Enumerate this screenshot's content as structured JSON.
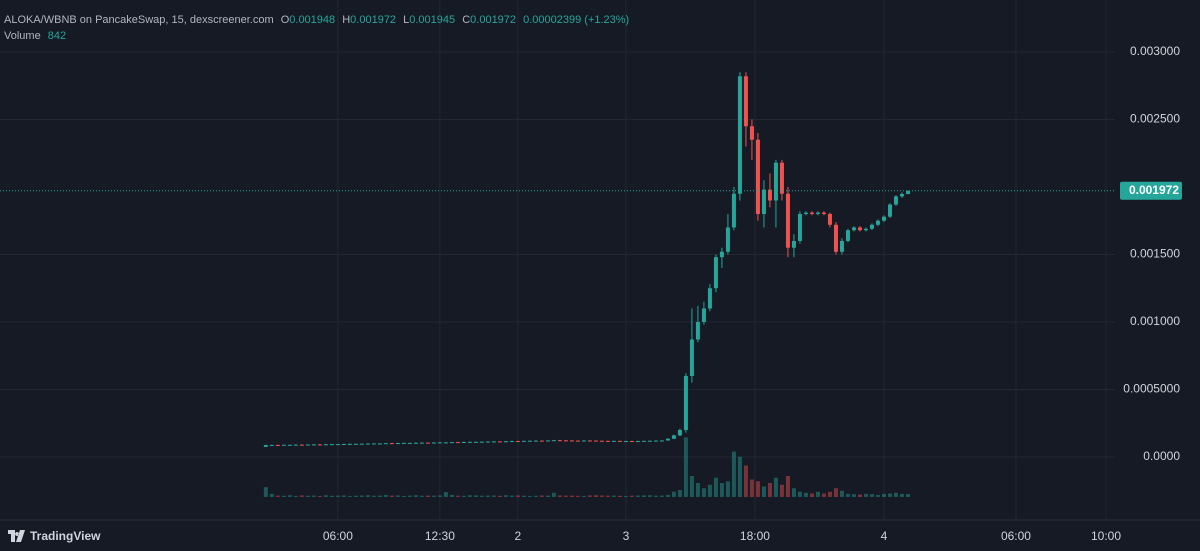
{
  "chart_data": {
    "type": "candlestick",
    "title": "ALOKA/WBNB on PancakeSwap, 15, dexscreener.com",
    "ohlc_labels": [
      "O",
      "H",
      "L",
      "C"
    ],
    "change": "0.00002399 (+1.23%)",
    "volume_title": "Volume",
    "brand": "TradingView",
    "up_color": "#26a69a",
    "down_color": "#ef5350",
    "grid": true,
    "ylim": [
      -0.000467,
      0.003385
    ],
    "yticks": [
      {
        "value": 0,
        "label": "0.0000"
      },
      {
        "value": 0.0005,
        "label": "0.0005000"
      },
      {
        "value": 0.001,
        "label": "0.001000"
      },
      {
        "value": 0.0015,
        "label": "0.001500"
      },
      {
        "value": 0.0025,
        "label": "0.002500"
      },
      {
        "value": 0.003,
        "label": "0.003000"
      }
    ],
    "xlim": [
      -44.3,
      141.5
    ],
    "xticks": [
      {
        "value": 12,
        "label": "06:00"
      },
      {
        "value": 29,
        "label": "12:30"
      },
      {
        "value": 42,
        "label": "2"
      },
      {
        "value": 60,
        "label": "3"
      },
      {
        "value": 81.5,
        "label": "18:00"
      },
      {
        "value": 103,
        "label": "4"
      },
      {
        "value": 125,
        "label": "06:00"
      },
      {
        "value": 140,
        "label": "10:00"
      }
    ],
    "volume_lim": [
      0,
      20000
    ],
    "candles": [
      [
        7.5e-05,
        9e-05,
        7.3e-05,
        8.8e-05
      ],
      [
        8.8e-05,
        9.1e-05,
        8.6e-05,
        8.9e-05
      ],
      [
        8.9e-05,
        9.1e-05,
        8.6e-05,
        8.8e-05
      ],
      [
        8.8e-05,
        9.2e-05,
        8.6e-05,
        9e-05
      ],
      [
        9e-05,
        9.2e-05,
        8.8e-05,
        9e-05
      ],
      [
        9e-05,
        9.3e-05,
        8.8e-05,
        9.1e-05
      ],
      [
        9.1e-05,
        9.3e-05,
        8.8e-05,
        9e-05
      ],
      [
        9e-05,
        9.4e-05,
        8.8e-05,
        9.2e-05
      ],
      [
        9.2e-05,
        9.5e-05,
        9e-05,
        9.3e-05
      ],
      [
        9.3e-05,
        9.5e-05,
        9e-05,
        9.2e-05
      ],
      [
        9.2e-05,
        9.6e-05,
        9e-05,
        9.4e-05
      ],
      [
        9.4e-05,
        9.7e-05,
        9.2e-05,
        9.5e-05
      ],
      [
        9.5e-05,
        9.7e-05,
        9.3e-05,
        9.5e-05
      ],
      [
        9.5e-05,
        9.8e-05,
        9.3e-05,
        9.6e-05
      ],
      [
        9.6e-05,
        9.9e-05,
        9.4e-05,
        9.7e-05
      ],
      [
        9.7e-05,
        9.9e-05,
        9.5e-05,
        9.7e-05
      ],
      [
        9.7e-05,
        0.0001,
        9.5e-05,
        9.8e-05
      ],
      [
        9.8e-05,
        0.000101,
        9.6e-05,
        9.9e-05
      ],
      [
        9.9e-05,
        0.000102,
        9.7e-05,
        0.0001
      ],
      [
        0.0001,
        0.000102,
        9.8e-05,
        0.0001
      ],
      [
        0.0001,
        0.000104,
        9.8e-05,
        0.000102
      ],
      [
        0.000102,
        0.000104,
        9.9e-05,
        0.000101
      ],
      [
        0.000101,
        0.000105,
        9.9e-05,
        0.000103
      ],
      [
        0.000103,
        0.000106,
        0.000101,
        0.000104
      ],
      [
        0.000104,
        0.000106,
        0.000102,
        0.000104
      ],
      [
        0.000104,
        0.000107,
        0.000102,
        0.000105
      ],
      [
        0.000105,
        0.000108,
        0.000103,
        0.000106
      ],
      [
        0.000106,
        0.000108,
        0.000103,
        0.000105
      ],
      [
        0.000105,
        0.000109,
        0.000103,
        0.000107
      ],
      [
        0.000107,
        0.00011,
        0.000105,
        0.000108
      ],
      [
        0.000108,
        0.00011,
        0.000106,
        0.000108
      ],
      [
        0.000108,
        0.000112,
        0.000106,
        0.00011
      ],
      [
        0.00011,
        0.000112,
        0.000107,
        0.000109
      ],
      [
        0.000109,
        0.000113,
        0.000107,
        0.000111
      ],
      [
        0.000111,
        0.000114,
        0.000109,
        0.000112
      ],
      [
        0.000112,
        0.000114,
        0.00011,
        0.000112
      ],
      [
        0.000112,
        0.000115,
        0.00011,
        0.000113
      ],
      [
        0.000113,
        0.000116,
        0.000111,
        0.000114
      ],
      [
        0.000114,
        0.000117,
        0.000112,
        0.000115
      ],
      [
        0.000115,
        0.000117,
        0.000112,
        0.000114
      ],
      [
        0.000114,
        0.000118,
        0.000112,
        0.000116
      ],
      [
        0.000116,
        0.00012,
        0.000114,
        0.000118
      ],
      [
        0.000118,
        0.00012,
        0.000115,
        0.000117
      ],
      [
        0.000117,
        0.000121,
        0.000115,
        0.000119
      ],
      [
        0.000119,
        0.000122,
        0.000117,
        0.00012
      ],
      [
        0.00012,
        0.000123,
        0.000118,
        0.000121
      ],
      [
        0.000121,
        0.000123,
        0.000118,
        0.00012
      ],
      [
        0.00012,
        0.000124,
        0.000118,
        0.000122
      ],
      [
        0.000122,
        0.000126,
        0.00012,
        0.000124
      ],
      [
        0.000124,
        0.000126,
        0.000121,
        0.000123
      ],
      [
        0.000123,
        0.000125,
        0.00012,
        0.000122
      ],
      [
        0.000122,
        0.000124,
        0.000119,
        0.000121
      ],
      [
        0.000121,
        0.000123,
        0.000118,
        0.00012
      ],
      [
        0.00012,
        0.000124,
        0.000118,
        0.000122
      ],
      [
        0.000122,
        0.000124,
        0.000119,
        0.000121
      ],
      [
        0.000121,
        0.000123,
        0.000118,
        0.00012
      ],
      [
        0.00012,
        0.000122,
        0.000117,
        0.000119
      ],
      [
        0.000119,
        0.000121,
        0.000116,
        0.000118
      ],
      [
        0.000118,
        0.000121,
        0.000116,
        0.000119
      ],
      [
        0.000119,
        0.000121,
        0.000115,
        0.000117
      ],
      [
        0.000117,
        0.00012,
        0.000115,
        0.000118
      ],
      [
        0.000118,
        0.00012,
        0.000115,
        0.000117
      ],
      [
        0.000117,
        0.00012,
        0.000115,
        0.000118
      ],
      [
        0.000118,
        0.000121,
        0.000116,
        0.000119
      ],
      [
        0.000119,
        0.000122,
        0.000117,
        0.00012
      ],
      [
        0.00012,
        0.000123,
        0.000118,
        0.000121
      ],
      [
        0.000121,
        0.000124,
        0.000119,
        0.000122
      ],
      [
        0.000122,
        0.000138,
        0.00012,
        0.000135
      ],
      [
        0.000135,
        0.000165,
        0.000132,
        0.00016
      ],
      [
        0.00016,
        0.00021,
        0.000155,
        0.0002
      ],
      [
        0.0002,
        0.00062,
        0.00018,
        0.0006
      ],
      [
        0.0006,
        0.0011,
        0.00055,
        0.00087
      ],
      [
        0.00087,
        0.00112,
        0.00085,
        0.001
      ],
      [
        0.001,
        0.00115,
        0.00098,
        0.0011
      ],
      [
        0.0011,
        0.00128,
        0.00108,
        0.00125
      ],
      [
        0.00125,
        0.0015,
        0.00122,
        0.00148
      ],
      [
        0.00148,
        0.00155,
        0.0014,
        0.00152
      ],
      [
        0.00152,
        0.0018,
        0.0015,
        0.0017
      ],
      [
        0.0017,
        0.002,
        0.00168,
        0.00195
      ],
      [
        0.00195,
        0.00285,
        0.0019,
        0.00282
      ],
      [
        0.00282,
        0.00285,
        0.0023,
        0.00245
      ],
      [
        0.00245,
        0.0025,
        0.0022,
        0.00235
      ],
      [
        0.00235,
        0.0024,
        0.00175,
        0.0018
      ],
      [
        0.0018,
        0.00205,
        0.0017,
        0.00198
      ],
      [
        0.00198,
        0.0021,
        0.00185,
        0.0019
      ],
      [
        0.0019,
        0.0022,
        0.0017,
        0.00218
      ],
      [
        0.00218,
        0.0022,
        0.0019,
        0.00195
      ],
      [
        0.00195,
        0.002,
        0.00148,
        0.00155
      ],
      [
        0.00155,
        0.00165,
        0.00148,
        0.0016
      ],
      [
        0.0016,
        0.00182,
        0.00158,
        0.0018
      ],
      [
        0.0018,
        0.00182,
        0.00179,
        0.00181
      ],
      [
        0.00181,
        0.00182,
        0.00179,
        0.0018
      ],
      [
        0.0018,
        0.00182,
        0.00179,
        0.00181
      ],
      [
        0.00181,
        0.00182,
        0.00179,
        0.0018
      ],
      [
        0.0018,
        0.00181,
        0.0017,
        0.00172
      ],
      [
        0.00172,
        0.00174,
        0.0015,
        0.00152
      ],
      [
        0.00152,
        0.00162,
        0.0015,
        0.0016
      ],
      [
        0.0016,
        0.00169,
        0.00159,
        0.00168
      ],
      [
        0.00168,
        0.00171,
        0.00167,
        0.0017
      ],
      [
        0.0017,
        0.00171,
        0.00167,
        0.00168
      ],
      [
        0.00168,
        0.0017,
        0.00167,
        0.00169
      ],
      [
        0.00169,
        0.00173,
        0.00168,
        0.00172
      ],
      [
        0.00172,
        0.00176,
        0.00171,
        0.00175
      ],
      [
        0.00175,
        0.00179,
        0.00174,
        0.00178
      ],
      [
        0.00178,
        0.00188,
        0.00177,
        0.00187
      ],
      [
        0.00187,
        0.00194,
        0.00186,
        0.00193
      ],
      [
        0.00193,
        0.00196,
        0.00192,
        0.001948
      ],
      [
        0.001948,
        0.001972,
        0.001945,
        0.001972
      ]
    ],
    "volume": [
      2800,
      900,
      400,
      350,
      500,
      300,
      450,
      380,
      420,
      300,
      500,
      350,
      400,
      450,
      300,
      380,
      420,
      500,
      350,
      400,
      600,
      380,
      450,
      300,
      400,
      500,
      350,
      420,
      380,
      450,
      1400,
      600,
      400,
      350,
      500,
      450,
      380,
      400,
      420,
      350,
      500,
      400,
      450,
      380,
      300,
      350,
      420,
      400,
      1200,
      450,
      380,
      400,
      350,
      300,
      450,
      500,
      420,
      380,
      400,
      350,
      300,
      380,
      420,
      450,
      500,
      380,
      400,
      600,
      1500,
      2000,
      17000,
      6000,
      4000,
      2500,
      3500,
      5500,
      4000,
      4500,
      13000,
      11500,
      9000,
      5000,
      4500,
      3000,
      4000,
      5500,
      3500,
      6000,
      2500,
      1500,
      1200,
      1000,
      1500,
      1000,
      1500,
      2500,
      1800,
      900,
      800,
      700,
      900,
      800,
      600,
      900,
      1000,
      1200,
      900,
      842
    ]
  }
}
